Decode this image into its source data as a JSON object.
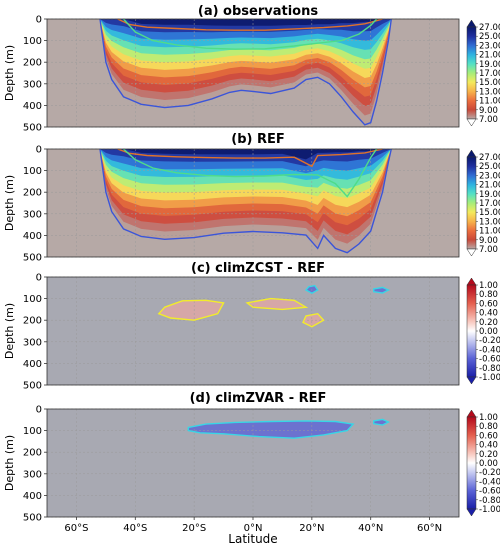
{
  "figure": {
    "xlabel": "Latitude",
    "x_ticks": [
      "60°S",
      "40°S",
      "20°S",
      "0°N",
      "20°N",
      "40°N",
      "60°N"
    ],
    "x_tick_values": [
      -60,
      -40,
      -20,
      0,
      20,
      40,
      60
    ],
    "xlim": [
      -70,
      70
    ],
    "y_ticks": [
      "0",
      "100",
      "200",
      "300",
      "400",
      "500"
    ],
    "y_tick_values": [
      0,
      100,
      200,
      300,
      400,
      500
    ],
    "ylim": [
      0,
      500
    ]
  },
  "chart_data": [
    {
      "type": "heatmap",
      "title": "(a) observations",
      "ylabel": "Depth (m)",
      "xlabel": "",
      "colorbar": {
        "palette": "temperature",
        "labels": [
          "27.00",
          "25.00",
          "23.00",
          "21.00",
          "19.00",
          "17.00",
          "15.00",
          "13.00",
          "11.00",
          "9.00",
          "7.00"
        ],
        "extend": "both"
      },
      "contours": [
        {
          "name": "orange-contour",
          "color": "#e0722a",
          "depths": [
            [
              -46,
              0
            ],
            [
              -42,
              25
            ],
            [
              -36,
              38
            ],
            [
              -26,
              44
            ],
            [
              -16,
              50
            ],
            [
              -6,
              52
            ],
            [
              4,
              52
            ],
            [
              14,
              46
            ],
            [
              24,
              40
            ],
            [
              32,
              32
            ],
            [
              38,
              22
            ],
            [
              42,
              8
            ],
            [
              44,
              0
            ]
          ]
        },
        {
          "name": "green-contour",
          "color": "#4fdc8a",
          "depths": [
            [
              -44,
              0
            ],
            [
              -40,
              60
            ],
            [
              -34,
              100
            ],
            [
              -26,
              120
            ],
            [
              -16,
              135
            ],
            [
              -6,
              140
            ],
            [
              4,
              138
            ],
            [
              14,
              125
            ],
            [
              22,
              112
            ],
            [
              30,
              100
            ],
            [
              36,
              70
            ],
            [
              40,
              30
            ],
            [
              42,
              0
            ]
          ]
        },
        {
          "name": "blue-contour",
          "color": "#3b55d9",
          "depths": [
            [
              -52,
              0
            ],
            [
              -50,
              200
            ],
            [
              -48,
              280
            ],
            [
              -44,
              360
            ],
            [
              -38,
              395
            ],
            [
              -30,
              410
            ],
            [
              -22,
              400
            ],
            [
              -14,
              370
            ],
            [
              -8,
              340
            ],
            [
              -4,
              330
            ],
            [
              0,
              335
            ],
            [
              6,
              345
            ],
            [
              14,
              320
            ],
            [
              18,
              280
            ],
            [
              22,
              270
            ],
            [
              26,
              300
            ],
            [
              30,
              360
            ],
            [
              34,
              430
            ],
            [
              38,
              490
            ],
            [
              40,
              480
            ],
            [
              42,
              380
            ],
            [
              44,
              250
            ],
            [
              46,
              100
            ],
            [
              47,
              0
            ]
          ]
        }
      ]
    },
    {
      "type": "heatmap",
      "title": "(b) REF",
      "ylabel": "Depth (m)",
      "xlabel": "",
      "colorbar": {
        "palette": "temperature",
        "labels": [
          "27.00",
          "25.00",
          "23.00",
          "21.00",
          "19.00",
          "17.00",
          "15.00",
          "13.00",
          "11.00",
          "9.00",
          "7.00"
        ],
        "extend": "both"
      },
      "contours": [
        {
          "name": "orange-contour",
          "color": "#e0722a",
          "depths": [
            [
              -46,
              0
            ],
            [
              -42,
              20
            ],
            [
              -36,
              30
            ],
            [
              -26,
              36
            ],
            [
              -16,
              40
            ],
            [
              -6,
              42
            ],
            [
              4,
              42
            ],
            [
              14,
              38
            ],
            [
              20,
              80
            ],
            [
              22,
              30
            ],
            [
              30,
              26
            ],
            [
              38,
              18
            ],
            [
              42,
              6
            ],
            [
              44,
              0
            ]
          ]
        },
        {
          "name": "green-contour",
          "color": "#4fdc8a",
          "depths": [
            [
              -44,
              0
            ],
            [
              -40,
              50
            ],
            [
              -34,
              88
            ],
            [
              -26,
              110
            ],
            [
              -16,
              122
            ],
            [
              -6,
              128
            ],
            [
              4,
              125
            ],
            [
              14,
              118
            ],
            [
              22,
              120
            ],
            [
              28,
              160
            ],
            [
              32,
              220
            ],
            [
              36,
              140
            ],
            [
              40,
              40
            ],
            [
              42,
              0
            ]
          ]
        },
        {
          "name": "blue-contour",
          "color": "#3b55d9",
          "depths": [
            [
              -52,
              0
            ],
            [
              -50,
              200
            ],
            [
              -48,
              290
            ],
            [
              -44,
              370
            ],
            [
              -38,
              405
            ],
            [
              -30,
              418
            ],
            [
              -20,
              410
            ],
            [
              -10,
              390
            ],
            [
              0,
              382
            ],
            [
              10,
              388
            ],
            [
              18,
              398
            ],
            [
              22,
              460
            ],
            [
              24,
              400
            ],
            [
              28,
              460
            ],
            [
              32,
              480
            ],
            [
              36,
              440
            ],
            [
              40,
              380
            ],
            [
              44,
              200
            ],
            [
              46,
              60
            ],
            [
              47,
              0
            ]
          ]
        }
      ]
    },
    {
      "type": "heatmap",
      "title": "(c) climZCST - REF",
      "ylabel": "Depth (m)",
      "xlabel": "",
      "colorbar": {
        "palette": "diverging",
        "labels": [
          "1.00",
          "0.80",
          "0.60",
          "0.40",
          "0.20",
          "0.00",
          "-0.20",
          "-0.40",
          "-0.60",
          "-0.80",
          "-1.00"
        ],
        "extend": "both"
      },
      "contours": [
        {
          "name": "yellow-contour",
          "color": "#f2ec2b",
          "depths": [
            [
              -30,
              140
            ],
            [
              -24,
              110
            ],
            [
              -16,
              108
            ],
            [
              -10,
              120
            ],
            [
              -12,
              170
            ],
            [
              -20,
              200
            ],
            [
              -28,
              190
            ],
            [
              -32,
              170
            ],
            [
              -30,
              140
            ]
          ]
        },
        {
          "name": "yellow-contour-2",
          "color": "#f2ec2b",
          "depths": [
            [
              -2,
              120
            ],
            [
              6,
              100
            ],
            [
              14,
              108
            ],
            [
              18,
              140
            ],
            [
              10,
              150
            ],
            [
              0,
              140
            ],
            [
              -2,
              120
            ]
          ]
        },
        {
          "name": "yellow-contour-3",
          "color": "#f2ec2b",
          "depths": [
            [
              18,
              180
            ],
            [
              22,
              170
            ],
            [
              24,
              200
            ],
            [
              20,
              230
            ],
            [
              17,
              210
            ],
            [
              18,
              180
            ]
          ]
        },
        {
          "name": "cyan-contour",
          "color": "#38d6e6",
          "depths": [
            [
              19,
              45
            ],
            [
              21,
              40
            ],
            [
              22,
              60
            ],
            [
              20,
              75
            ],
            [
              18,
              60
            ],
            [
              19,
              45
            ]
          ]
        },
        {
          "name": "cyan-contour-2",
          "color": "#38d6e6",
          "depths": [
            [
              41,
              55
            ],
            [
              44,
              48
            ],
            [
              46,
              60
            ],
            [
              44,
              74
            ],
            [
              41,
              68
            ],
            [
              41,
              55
            ]
          ]
        }
      ]
    },
    {
      "type": "heatmap",
      "title": "(d) climZVAR - REF",
      "ylabel": "Depth (m)",
      "xlabel": "Latitude",
      "colorbar": {
        "palette": "diverging",
        "labels": [
          "1.00",
          "0.80",
          "0.60",
          "0.40",
          "0.20",
          "0.00",
          "-0.20",
          "-0.40",
          "-0.60",
          "-0.80",
          "-1.00"
        ],
        "extend": "both"
      },
      "contours": [
        {
          "name": "cyan-contour",
          "color": "#38d6e6",
          "depths": [
            [
              -22,
              85
            ],
            [
              -16,
              70
            ],
            [
              -6,
              62
            ],
            [
              6,
              58
            ],
            [
              18,
              55
            ],
            [
              28,
              58
            ],
            [
              34,
              70
            ],
            [
              32,
              100
            ],
            [
              24,
              120
            ],
            [
              14,
              135
            ],
            [
              2,
              128
            ],
            [
              -10,
              115
            ],
            [
              -18,
              110
            ],
            [
              -22,
              100
            ],
            [
              -22,
              85
            ]
          ]
        },
        {
          "name": "cyan-contour-2",
          "color": "#38d6e6",
          "depths": [
            [
              41,
              55
            ],
            [
              44,
              48
            ],
            [
              46,
              60
            ],
            [
              44,
              74
            ],
            [
              41,
              68
            ],
            [
              41,
              55
            ]
          ]
        }
      ]
    }
  ]
}
